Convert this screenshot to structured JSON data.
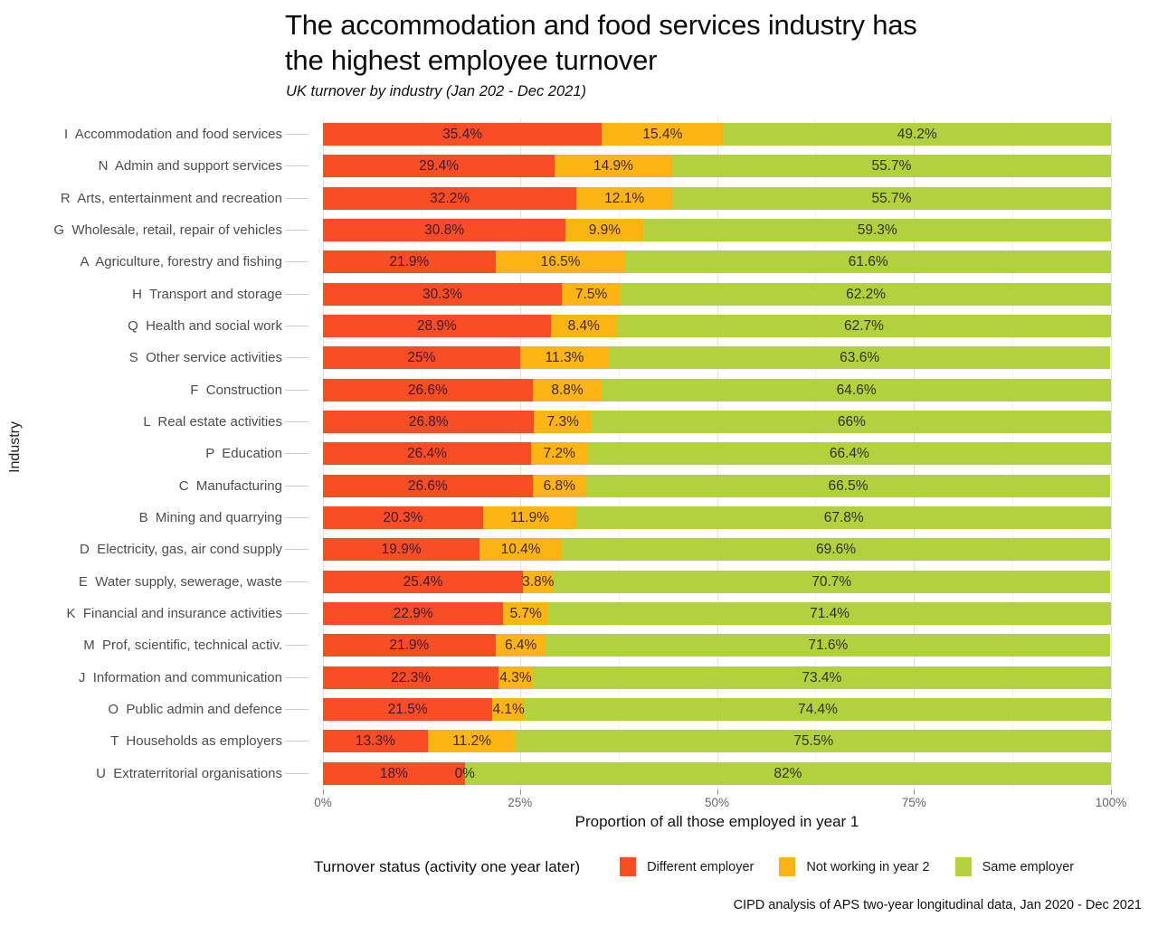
{
  "title": {
    "line1": "The accommodation and food services industry has",
    "line2": "the highest employee turnover"
  },
  "subtitle": "UK turnover by industry (Jan 202 - Dec 2021)",
  "caption": "CIPD analysis of APS two-year longitudinal data, Jan 2020 - Dec 2021",
  "colors": {
    "different_employer": "#F94E25",
    "not_working_year2": "#FCB514",
    "same_employer": "#B1D23C"
  },
  "legend": {
    "title": "Turnover status (activity one year later)",
    "items": [
      {
        "label": "Different employer",
        "color": "#F94E25"
      },
      {
        "label": "Not working in year 2",
        "color": "#FCB514"
      },
      {
        "label": "Same employer",
        "color": "#B1D23C"
      }
    ]
  },
  "chart_data": {
    "type": "bar",
    "stacked": true,
    "orientation": "horizontal",
    "title": "The accommodation and food services industry has the highest employee turnover",
    "subtitle": "UK turnover by industry (Jan 202 - Dec 2021)",
    "xlabel": "Proportion of all those employed in year 1",
    "ylabel": "Industry",
    "xlim": [
      0,
      100
    ],
    "grid": true,
    "legend_position": "bottom",
    "x_ticks": [
      {
        "label": "0%",
        "value": 0
      },
      {
        "label": "25%",
        "value": 25
      },
      {
        "label": "50%",
        "value": 50
      },
      {
        "label": "75%",
        "value": 75
      },
      {
        "label": "100%",
        "value": 100
      }
    ],
    "series_names": [
      "Different employer",
      "Not working in year 2",
      "Same employer"
    ],
    "rows": [
      {
        "industry": "I  Accommodation and food services",
        "values": [
          35.4,
          15.4,
          49.2
        ],
        "labels": [
          "35.4%",
          "15.4%",
          "49.2%"
        ]
      },
      {
        "industry": "N  Admin and support services",
        "values": [
          29.4,
          14.9,
          55.7
        ],
        "labels": [
          "29.4%",
          "14.9%",
          "55.7%"
        ]
      },
      {
        "industry": "R  Arts, entertainment and recreation",
        "values": [
          32.2,
          12.1,
          55.7
        ],
        "labels": [
          "32.2%",
          "12.1%",
          "55.7%"
        ]
      },
      {
        "industry": "G  Wholesale, retail, repair of vehicles",
        "values": [
          30.8,
          9.9,
          59.3
        ],
        "labels": [
          "30.8%",
          "9.9%",
          "59.3%"
        ]
      },
      {
        "industry": "A  Agriculture, forestry and fishing",
        "values": [
          21.9,
          16.5,
          61.6
        ],
        "labels": [
          "21.9%",
          "16.5%",
          "61.6%"
        ]
      },
      {
        "industry": "H  Transport and storage",
        "values": [
          30.3,
          7.5,
          62.2
        ],
        "labels": [
          "30.3%",
          "7.5%",
          "62.2%"
        ]
      },
      {
        "industry": "Q  Health and social work",
        "values": [
          28.9,
          8.4,
          62.7
        ],
        "labels": [
          "28.9%",
          "8.4%",
          "62.7%"
        ]
      },
      {
        "industry": "S  Other service activities",
        "values": [
          25,
          11.3,
          63.6
        ],
        "labels": [
          "25%",
          "11.3%",
          "63.6%"
        ]
      },
      {
        "industry": "F  Construction",
        "values": [
          26.6,
          8.8,
          64.6
        ],
        "labels": [
          "26.6%",
          "8.8%",
          "64.6%"
        ]
      },
      {
        "industry": "L  Real estate activities",
        "values": [
          26.8,
          7.3,
          66
        ],
        "labels": [
          "26.8%",
          "7.3%",
          "66%"
        ]
      },
      {
        "industry": "P  Education",
        "values": [
          26.4,
          7.2,
          66.4
        ],
        "labels": [
          "26.4%",
          "7.2%",
          "66.4%"
        ]
      },
      {
        "industry": "C  Manufacturing",
        "values": [
          26.6,
          6.8,
          66.5
        ],
        "labels": [
          "26.6%",
          "6.8%",
          "66.5%"
        ]
      },
      {
        "industry": "B  Mining and quarrying",
        "values": [
          20.3,
          11.9,
          67.8
        ],
        "labels": [
          "20.3%",
          "11.9%",
          "67.8%"
        ]
      },
      {
        "industry": "D  Electricity, gas, air cond supply",
        "values": [
          19.9,
          10.4,
          69.6
        ],
        "labels": [
          "19.9%",
          "10.4%",
          "69.6%"
        ]
      },
      {
        "industry": "E  Water supply, sewerage, waste",
        "values": [
          25.4,
          3.8,
          70.7
        ],
        "labels": [
          "25.4%",
          "3.8%",
          "70.7%"
        ]
      },
      {
        "industry": "K  Financial and insurance activities",
        "values": [
          22.9,
          5.7,
          71.4
        ],
        "labels": [
          "22.9%",
          "5.7%",
          "71.4%"
        ]
      },
      {
        "industry": "M  Prof, scientific, technical activ.",
        "values": [
          21.9,
          6.4,
          71.6
        ],
        "labels": [
          "21.9%",
          "6.4%",
          "71.6%"
        ]
      },
      {
        "industry": "J  Information and communication",
        "values": [
          22.3,
          4.3,
          73.4
        ],
        "labels": [
          "22.3%",
          "4.3%",
          "73.4%"
        ]
      },
      {
        "industry": "O  Public admin and defence",
        "values": [
          21.5,
          4.1,
          74.4
        ],
        "labels": [
          "21.5%",
          "4.1%",
          "74.4%"
        ]
      },
      {
        "industry": "T  Households as employers",
        "values": [
          13.3,
          11.2,
          75.5
        ],
        "labels": [
          "13.3%",
          "11.2%",
          "75.5%"
        ]
      },
      {
        "industry": "U  Extraterritorial organisations",
        "values": [
          18,
          0,
          82
        ],
        "labels": [
          "18%",
          "0%",
          "82%"
        ]
      }
    ]
  }
}
